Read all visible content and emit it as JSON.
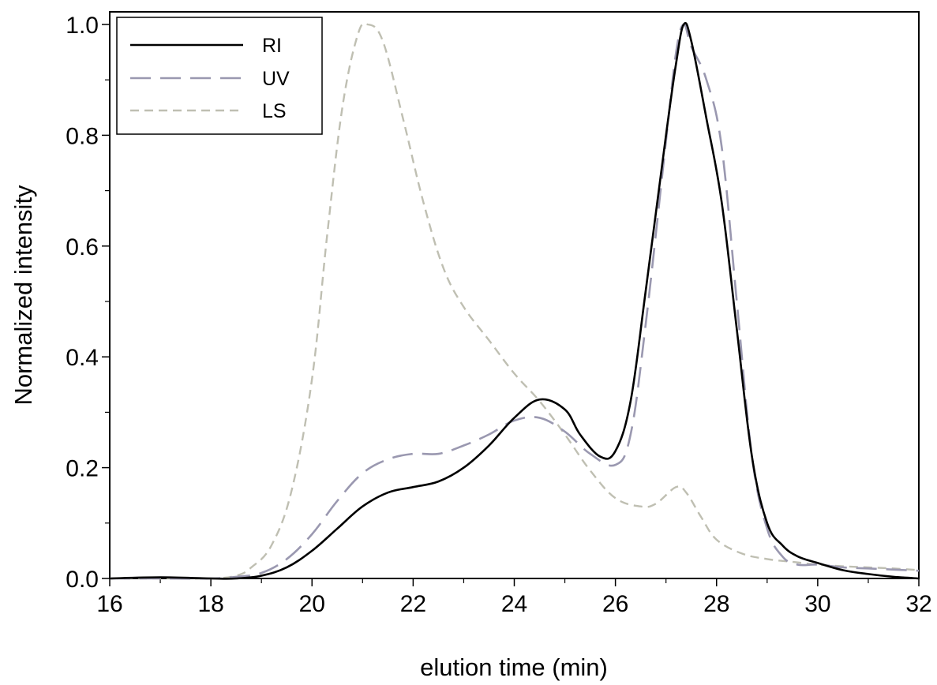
{
  "chart_data": {
    "type": "line",
    "xlabel": "elution time (min)",
    "ylabel": "Normalized intensity",
    "xlim": [
      16,
      32
    ],
    "ylim": [
      0,
      1.0
    ],
    "x_ticks": [
      "16",
      "18",
      "20",
      "22",
      "24",
      "26",
      "28",
      "30",
      "32"
    ],
    "y_ticks": [
      "0.0",
      "0.2",
      "0.4",
      "0.6",
      "0.8",
      "1.0"
    ],
    "grid": false,
    "legend_position": "top-left",
    "series": [
      {
        "name": "RI",
        "color": "#000000",
        "dash": "solid",
        "x": [
          16,
          17,
          18,
          18.5,
          19,
          19.5,
          20,
          20.5,
          21,
          21.5,
          22,
          22.5,
          23,
          23.5,
          24,
          24.5,
          25,
          25.3,
          25.7,
          26,
          26.3,
          26.6,
          27,
          27.2,
          27.35,
          27.5,
          27.8,
          28.1,
          28.4,
          28.7,
          29,
          29.3,
          29.6,
          30,
          30.5,
          31,
          31.5,
          32
        ],
        "values": [
          0.0,
          0.002,
          0.0,
          0.0,
          0.005,
          0.02,
          0.05,
          0.09,
          0.13,
          0.155,
          0.165,
          0.175,
          0.2,
          0.24,
          0.29,
          0.323,
          0.305,
          0.26,
          0.22,
          0.23,
          0.32,
          0.52,
          0.8,
          0.93,
          1.0,
          0.97,
          0.83,
          0.68,
          0.45,
          0.22,
          0.1,
          0.06,
          0.04,
          0.028,
          0.015,
          0.008,
          0.003,
          0.0
        ]
      },
      {
        "name": "UV",
        "color": "#9a98b0",
        "dash": "long-dash",
        "x": [
          16,
          17,
          18,
          18.5,
          19,
          19.5,
          20,
          20.5,
          21,
          21.5,
          22,
          22.5,
          23,
          23.5,
          24,
          24.5,
          25,
          25.5,
          26,
          26.3,
          26.6,
          27,
          27.2,
          27.35,
          27.5,
          27.8,
          28.1,
          28.4,
          28.7,
          29,
          29.3,
          29.6,
          30,
          30.5,
          31,
          31.5,
          32
        ],
        "values": [
          0.0,
          0.0,
          0.0,
          0.003,
          0.01,
          0.035,
          0.08,
          0.14,
          0.19,
          0.215,
          0.225,
          0.225,
          0.24,
          0.26,
          0.285,
          0.29,
          0.265,
          0.225,
          0.205,
          0.26,
          0.46,
          0.79,
          0.95,
          1.0,
          0.96,
          0.9,
          0.78,
          0.5,
          0.22,
          0.09,
          0.04,
          0.025,
          0.025,
          0.02,
          0.018,
          0.016,
          0.014
        ]
      },
      {
        "name": "LS",
        "color": "#bfbfb2",
        "dash": "short-dash",
        "x": [
          16,
          17,
          18,
          18.5,
          18.8,
          19.2,
          19.6,
          20,
          20.3,
          20.6,
          20.9,
          21.1,
          21.4,
          21.8,
          22.2,
          22.6,
          23,
          23.5,
          24,
          24.5,
          25,
          25.5,
          26,
          26.5,
          26.8,
          27.2,
          27.4,
          27.7,
          28,
          28.5,
          29,
          29.5,
          30,
          30.5,
          31,
          31.5,
          32
        ],
        "values": [
          0.0,
          0.0,
          0.0,
          0.005,
          0.02,
          0.06,
          0.16,
          0.36,
          0.62,
          0.85,
          0.98,
          1.0,
          0.97,
          0.83,
          0.68,
          0.56,
          0.49,
          0.43,
          0.37,
          0.32,
          0.26,
          0.195,
          0.145,
          0.13,
          0.135,
          0.165,
          0.155,
          0.11,
          0.07,
          0.045,
          0.035,
          0.03,
          0.025,
          0.022,
          0.02,
          0.018,
          0.015
        ]
      }
    ]
  }
}
